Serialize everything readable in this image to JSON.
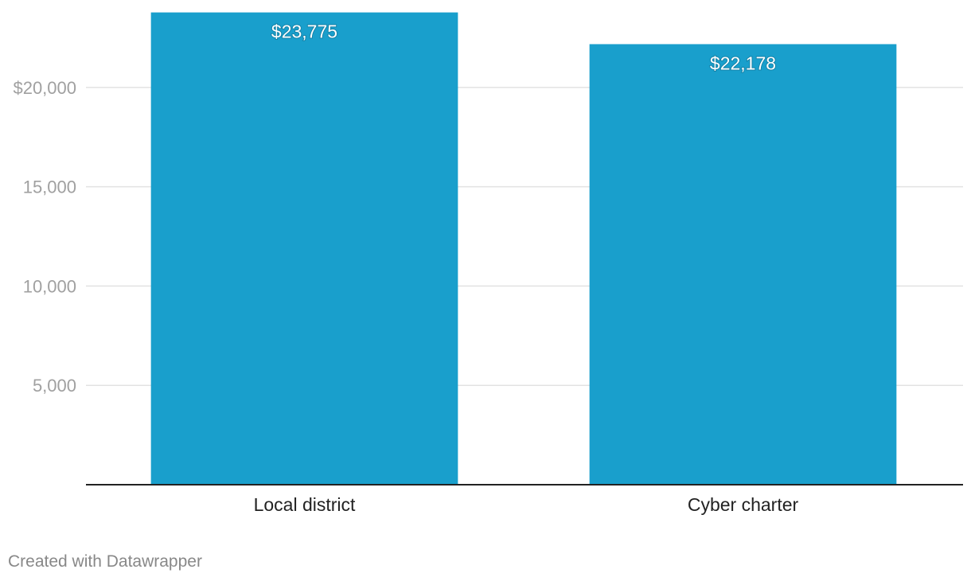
{
  "chart_data": {
    "type": "bar",
    "categories": [
      "Local district",
      "Cyber charter"
    ],
    "values": [
      23775,
      22178
    ],
    "value_labels": [
      "$23,775",
      "$22,178"
    ],
    "title": "",
    "xlabel": "",
    "ylabel": "",
    "ylim": [
      0,
      24000
    ],
    "y_ticks": [
      5000,
      10000,
      15000,
      20000
    ],
    "y_tick_labels": [
      "5,000",
      "10,000",
      "15,000",
      "$20,000"
    ],
    "grid": true,
    "bar_color": "#199fcc"
  },
  "footer": {
    "credit": "Created with Datawrapper"
  }
}
